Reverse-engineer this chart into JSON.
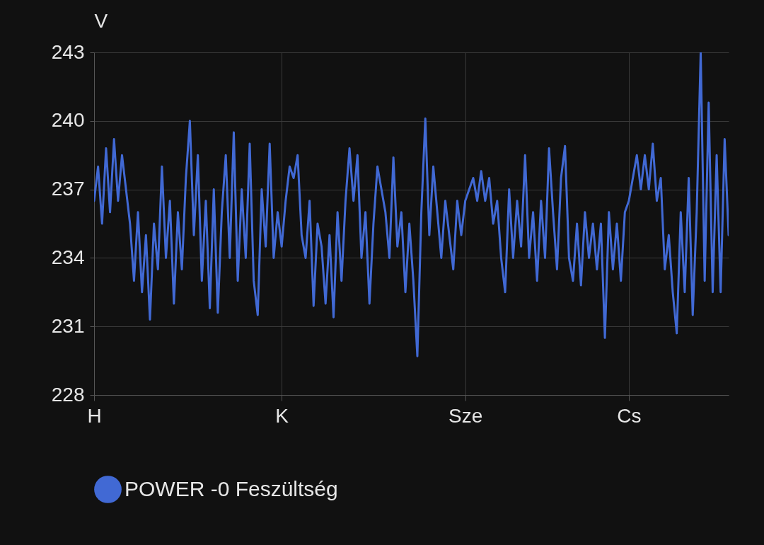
{
  "chart_data": {
    "type": "line",
    "ylabel": "V",
    "ylim": [
      228,
      243
    ],
    "yticks": [
      228,
      231,
      234,
      237,
      240,
      243
    ],
    "grid": true,
    "legend": "bottom",
    "marker": "none",
    "line_style": "solid",
    "categories": [
      "H",
      null,
      null,
      null,
      null,
      null,
      null,
      null,
      null,
      null,
      null,
      null,
      null,
      null,
      null,
      null,
      null,
      null,
      null,
      null,
      null,
      null,
      null,
      null,
      null,
      null,
      null,
      null,
      null,
      null,
      null,
      null,
      null,
      null,
      null,
      null,
      null,
      null,
      null,
      null,
      null,
      null,
      null,
      null,
      null,
      null,
      null,
      "K",
      null,
      null,
      null,
      null,
      null,
      null,
      null,
      null,
      null,
      null,
      null,
      null,
      null,
      null,
      null,
      null,
      null,
      null,
      null,
      null,
      null,
      null,
      null,
      null,
      null,
      null,
      null,
      null,
      null,
      null,
      null,
      null,
      null,
      null,
      null,
      null,
      null,
      null,
      null,
      null,
      null,
      null,
      null,
      null,
      null,
      "Sze",
      null,
      null,
      null,
      null,
      null,
      null,
      null,
      null,
      null,
      null,
      null,
      null,
      null,
      null,
      null,
      null,
      null,
      null,
      null,
      null,
      null,
      null,
      null,
      null,
      null,
      null,
      null,
      null,
      null,
      null,
      null,
      null,
      null,
      null,
      null,
      null,
      null,
      null,
      null,
      null,
      "Cs",
      null,
      null,
      null,
      null,
      null,
      null,
      null,
      null,
      null,
      null,
      null,
      null,
      null,
      null,
      null,
      null,
      null,
      null,
      null,
      null,
      null,
      null,
      null,
      null,
      null
    ],
    "series": [
      {
        "name": "POWER -0 Feszültség",
        "color": "#4169d4",
        "values": [
          236.5,
          238,
          235.5,
          238.8,
          236,
          239.2,
          236.5,
          238.5,
          237,
          235.5,
          233,
          236,
          232.5,
          235,
          231.3,
          235.5,
          233.5,
          238,
          234,
          236.5,
          232,
          236,
          233.5,
          237.5,
          240,
          235,
          238.5,
          233,
          236.5,
          231.8,
          237,
          231.6,
          236,
          238.5,
          234,
          239.5,
          233,
          237,
          234,
          239,
          233,
          231.5,
          237,
          234.5,
          239,
          234,
          236,
          234.5,
          236.5,
          238,
          237.5,
          238.5,
          235,
          234,
          236.5,
          231.9,
          235.5,
          234.5,
          232,
          235,
          231.4,
          236,
          233,
          236.5,
          238.8,
          236.5,
          238.5,
          234,
          236,
          232,
          235.5,
          238,
          237,
          236,
          234,
          238.4,
          234.5,
          236,
          232.5,
          235.5,
          233,
          229.7,
          236,
          240.1,
          235,
          238,
          236,
          234,
          236.5,
          235,
          233.5,
          236.5,
          235,
          236.5,
          237,
          237.5,
          236.5,
          237.8,
          236.5,
          237.5,
          235.5,
          236.5,
          234,
          232.5,
          237,
          234,
          236.5,
          234.5,
          238.5,
          234,
          236,
          233,
          236.5,
          234,
          238.8,
          236,
          233.5,
          237.5,
          238.9,
          234,
          233,
          235.5,
          232.8,
          236,
          234,
          235.5,
          233.5,
          235.5,
          230.5,
          236,
          233.5,
          235.5,
          233,
          236,
          236.5,
          237.5,
          238.5,
          237,
          238.5,
          237,
          239,
          236.5,
          237.5,
          233.5,
          235,
          232.5,
          230.7,
          236,
          232.5,
          237.5,
          231.5,
          236,
          243,
          233,
          240.8,
          232.5,
          238.5,
          232.5,
          239.2,
          235
        ]
      }
    ]
  }
}
